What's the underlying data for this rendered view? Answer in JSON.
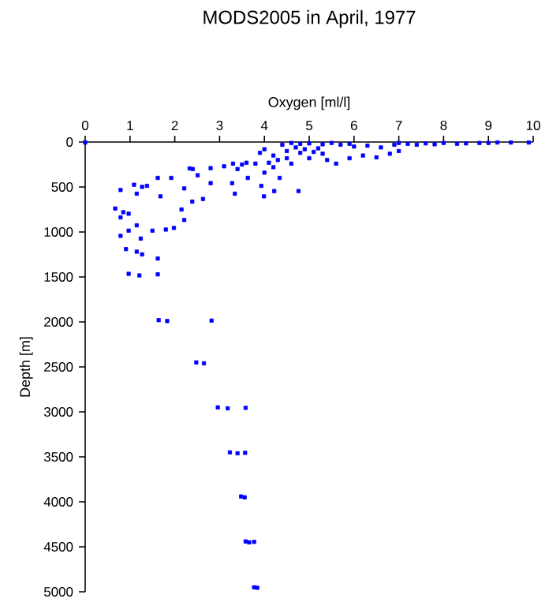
{
  "chart_data": {
    "type": "scatter",
    "title": "MODS2005 in April, 1977",
    "xlabel": "Oxygen [ml/l]",
    "ylabel": "Depth [m]",
    "xlim": [
      0,
      10
    ],
    "xticks": [
      0,
      1,
      2,
      3,
      4,
      5,
      6,
      7,
      8,
      9,
      10
    ],
    "ylim": [
      5000,
      0
    ],
    "yticks": [
      0,
      500,
      1000,
      1500,
      2000,
      2500,
      3000,
      3500,
      4000,
      4500,
      5000
    ],
    "marker": "square",
    "series": [
      {
        "color": "#0000ff",
        "x": [
          0,
          4.6,
          4.8,
          5.0,
          5.3,
          5.5,
          5.7,
          5.9,
          6.0,
          6.3,
          6.6,
          6.9,
          7.0,
          7.2,
          7.4,
          7.6,
          7.8,
          8.0,
          8.3,
          8.5,
          8.8,
          9.0,
          9.2,
          9.5,
          9.9,
          4.4,
          4.7,
          4.9,
          5.2,
          4.5,
          4.8,
          5.1,
          4.0,
          3.9,
          4.2,
          4.5,
          5.0,
          5.4,
          5.6,
          5.9,
          6.2,
          6.5,
          6.8,
          7.0,
          5.3,
          4.3,
          4.1,
          3.6,
          3.3,
          3.1,
          3.5,
          3.8,
          2.8,
          2.4,
          4.6,
          4.2,
          4.0,
          3.4,
          2.33,
          1.92,
          1.62,
          1.27,
          1.09,
          0.79,
          1.15,
          1.38,
          1.68,
          2.21,
          2.8,
          3.34,
          3.99,
          4.22,
          4.76,
          4.34,
          3.93,
          2.63,
          2.39,
          3.28,
          3.63,
          2.51,
          0.67,
          0.85,
          0.97,
          0.79,
          2.15,
          2.21,
          1.98,
          1.8,
          1.15,
          0.97,
          0.79,
          1.24,
          1.5,
          0.91,
          1.15,
          1.27,
          1.62,
          0.97,
          1.21,
          1.62,
          1.64,
          1.83,
          2.82,
          2.48,
          2.65,
          2.96,
          3.18,
          3.58,
          3.23,
          3.4,
          3.57,
          3.48,
          3.56,
          3.58,
          3.66,
          3.77,
          3.77,
          3.84
        ],
        "values": [
          5,
          10,
          20,
          15,
          25,
          10,
          30,
          20,
          50,
          40,
          60,
          30,
          10,
          20,
          30,
          15,
          25,
          10,
          20,
          15,
          10,
          10,
          5,
          5,
          5,
          30,
          60,
          80,
          70,
          100,
          120,
          110,
          80,
          120,
          150,
          180,
          180,
          200,
          240,
          180,
          150,
          170,
          130,
          100,
          130,
          200,
          230,
          230,
          240,
          270,
          250,
          240,
          290,
          300,
          240,
          280,
          340,
          300,
          293,
          399,
          399,
          498,
          475,
          533,
          574,
          487,
          604,
          516,
          457,
          574,
          604,
          545,
          545,
          399,
          487,
          633,
          662,
          457,
          399,
          369,
          739,
          780,
          797,
          838,
          750,
          867,
          955,
          973,
          926,
          985,
          1043,
          1073,
          985,
          1190,
          1219,
          1249,
          1295,
          1465,
          1483,
          1471,
          1980,
          1990,
          1985,
          2450,
          2460,
          2950,
          2960,
          2955,
          3450,
          3460,
          3455,
          3940,
          3950,
          4440,
          4450,
          4445,
          4950,
          4955
        ]
      }
    ]
  }
}
